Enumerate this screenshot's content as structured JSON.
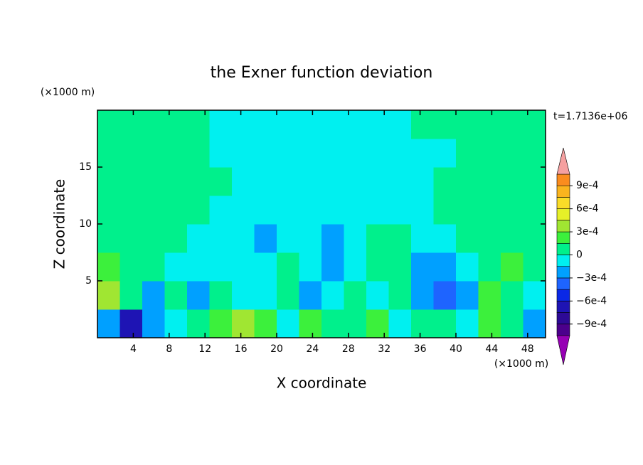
{
  "chart_data": {
    "type": "contour",
    "title": "the Exner function deviation",
    "y_unit": "(×1000 m)",
    "x_unit": "(×1000 m)",
    "time_label": "t=1.7136e+06",
    "xlabel": "X coordinate",
    "ylabel": "Z coordinate",
    "xlim": [
      0,
      50
    ],
    "ylim": [
      0,
      20
    ],
    "xticks": [
      4,
      8,
      12,
      16,
      20,
      24,
      28,
      32,
      36,
      40,
      44,
      48
    ],
    "yticks": [
      5,
      10,
      15
    ],
    "x": [
      1.25,
      3.75,
      6.25,
      8.75,
      11.25,
      13.75,
      16.25,
      18.75,
      21.25,
      23.75,
      26.25,
      28.75,
      31.25,
      33.75,
      36.25,
      38.75,
      41.25,
      43.75,
      46.25,
      48.75
    ],
    "z": [
      1.25,
      3.75,
      6.25,
      8.75,
      11.25,
      13.75,
      16.25,
      18.75
    ],
    "values": [
      [
        -0.0002,
        -0.0007,
        -0.0002,
        -7e-05,
        7e-05,
        0.0002,
        0.00035,
        0.0002,
        -7e-05,
        0.0002,
        7e-05,
        7e-05,
        0.0002,
        -7e-05,
        7e-05,
        7e-05,
        -7e-05,
        0.0002,
        7e-05,
        -0.0002
      ],
      [
        0.00035,
        7e-05,
        -0.0002,
        7e-05,
        -0.0002,
        7e-05,
        -7e-05,
        -7e-05,
        7e-05,
        -0.0002,
        -7e-05,
        7e-05,
        -7e-05,
        7e-05,
        -0.0002,
        -0.00035,
        -0.0002,
        0.0002,
        7e-05,
        -7e-05
      ],
      [
        0.0002,
        7e-05,
        7e-05,
        -7e-05,
        -7e-05,
        -7e-05,
        -7e-05,
        -7e-05,
        7e-05,
        -7e-05,
        -0.0002,
        -7e-05,
        7e-05,
        7e-05,
        -0.0002,
        -0.0002,
        -7e-05,
        7e-05,
        0.0002,
        7e-05
      ],
      [
        7e-05,
        7e-05,
        7e-05,
        7e-05,
        -7e-05,
        -7e-05,
        -7e-05,
        -0.0002,
        -7e-05,
        -7e-05,
        -0.0002,
        -7e-05,
        7e-05,
        7e-05,
        -7e-05,
        -7e-05,
        7e-05,
        7e-05,
        7e-05,
        7e-05
      ],
      [
        7e-05,
        7e-05,
        7e-05,
        7e-05,
        7e-05,
        -7e-05,
        -7e-05,
        -7e-05,
        -7e-05,
        -7e-05,
        -7e-05,
        -7e-05,
        -7e-05,
        -7e-05,
        -7e-05,
        7e-05,
        7e-05,
        7e-05,
        7e-05,
        7e-05
      ],
      [
        7e-05,
        7e-05,
        7e-05,
        7e-05,
        7e-05,
        7e-05,
        -7e-05,
        -7e-05,
        -7e-05,
        -7e-05,
        -7e-05,
        -7e-05,
        -7e-05,
        -7e-05,
        -7e-05,
        7e-05,
        7e-05,
        7e-05,
        7e-05,
        7e-05
      ],
      [
        7e-05,
        7e-05,
        7e-05,
        7e-05,
        7e-05,
        -7e-05,
        -7e-05,
        -7e-05,
        -7e-05,
        -7e-05,
        -7e-05,
        -7e-05,
        -7e-05,
        -7e-05,
        -7e-05,
        -7e-05,
        7e-05,
        7e-05,
        7e-05,
        7e-05
      ],
      [
        7e-05,
        7e-05,
        7e-05,
        7e-05,
        7e-05,
        -7e-05,
        -7e-05,
        -7e-05,
        -7e-05,
        -7e-05,
        -7e-05,
        -7e-05,
        -7e-05,
        -7e-05,
        7e-05,
        7e-05,
        7e-05,
        7e-05,
        7e-05,
        7e-05
      ]
    ],
    "levels": [
      -0.00105,
      -0.0009,
      -0.00075,
      -0.0006,
      -0.00045,
      -0.0003,
      -0.00015,
      0,
      0.00015,
      0.0003,
      0.00045,
      0.0006,
      0.00075,
      0.0009,
      0.00105
    ],
    "colors": [
      "#4b008c",
      "#2d0a96",
      "#1e14b4",
      "#0a28e6",
      "#1e64ff",
      "#00a0ff",
      "#00f0f0",
      "#00f08c",
      "#3cf03c",
      "#a0e632",
      "#e6f028",
      "#fadc28",
      "#fab41e",
      "#fa8c1e",
      "#f03c28"
    ],
    "under_color": "#9600b4",
    "over_color": "#f5a0a0",
    "colorbar_ticks": [
      {
        "value": 0.0009,
        "label": "9e-4"
      },
      {
        "value": 0.0006,
        "label": "6e-4"
      },
      {
        "value": 0.0003,
        "label": "3e-4"
      },
      0,
      {
        "value": -0.0003,
        "label": "−3e-4"
      },
      {
        "value": -0.0006,
        "label": "−6e-4"
      },
      {
        "value": -0.0009,
        "label": "−9e-4"
      }
    ]
  }
}
